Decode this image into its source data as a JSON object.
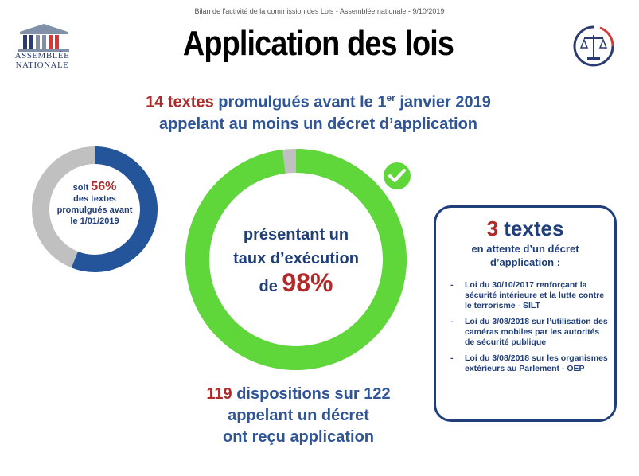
{
  "header": {
    "note": "Bilan de l'activité de la commission des Lois - Assemblée nationale - 9/10/2019",
    "logo_line1": "ASSEMBLÉE",
    "logo_line2": "NATIONALE",
    "title": "Application des lois",
    "icon_logo": "assemblee-nationale-logo",
    "icon_justice": "scales-of-justice-icon"
  },
  "intro": {
    "count": "14 textes",
    "line1_rest": " promulgués avant le 1",
    "superscript": "er",
    "line1_end": " janvier 2019",
    "line2": "appelant au moins un décret d’application"
  },
  "left_donut": {
    "prefix": "soit ",
    "percent_label": "56%",
    "percent_value": 56,
    "line2": "des textes",
    "line3": "promulgués avant",
    "line4": "le 1/01/2019",
    "color_filled": "#24549a",
    "color_rest": "#c0c0c0"
  },
  "big_donut": {
    "line1": "présentant un",
    "line2": "taux d’exécution",
    "prefix": "de ",
    "percent_label": "98%",
    "percent_value": 98,
    "color_filled": "#5fd63a",
    "color_rest": "#c0c0c0",
    "icon": "check-circle-icon"
  },
  "dispositions": {
    "count": "119",
    "line1_rest": " dispositions sur 122",
    "line2": "appelant un décret",
    "line3": "ont reçu application"
  },
  "pending": {
    "count": "3",
    "title_rest": " textes",
    "sub_line1": "en attente d’un décret",
    "sub_line2": "d’application :",
    "items": [
      "Loi du 30/10/2017 renforçant la sécurité intérieure et la lutte contre le terrorisme - SILT",
      "Loi du 3/08/2018 sur l’utilisation des caméras mobiles par les autorités de sécurité publique",
      "Loi du 3/08/2018 sur les organismes extérieurs au Parlement - OEP"
    ]
  }
}
